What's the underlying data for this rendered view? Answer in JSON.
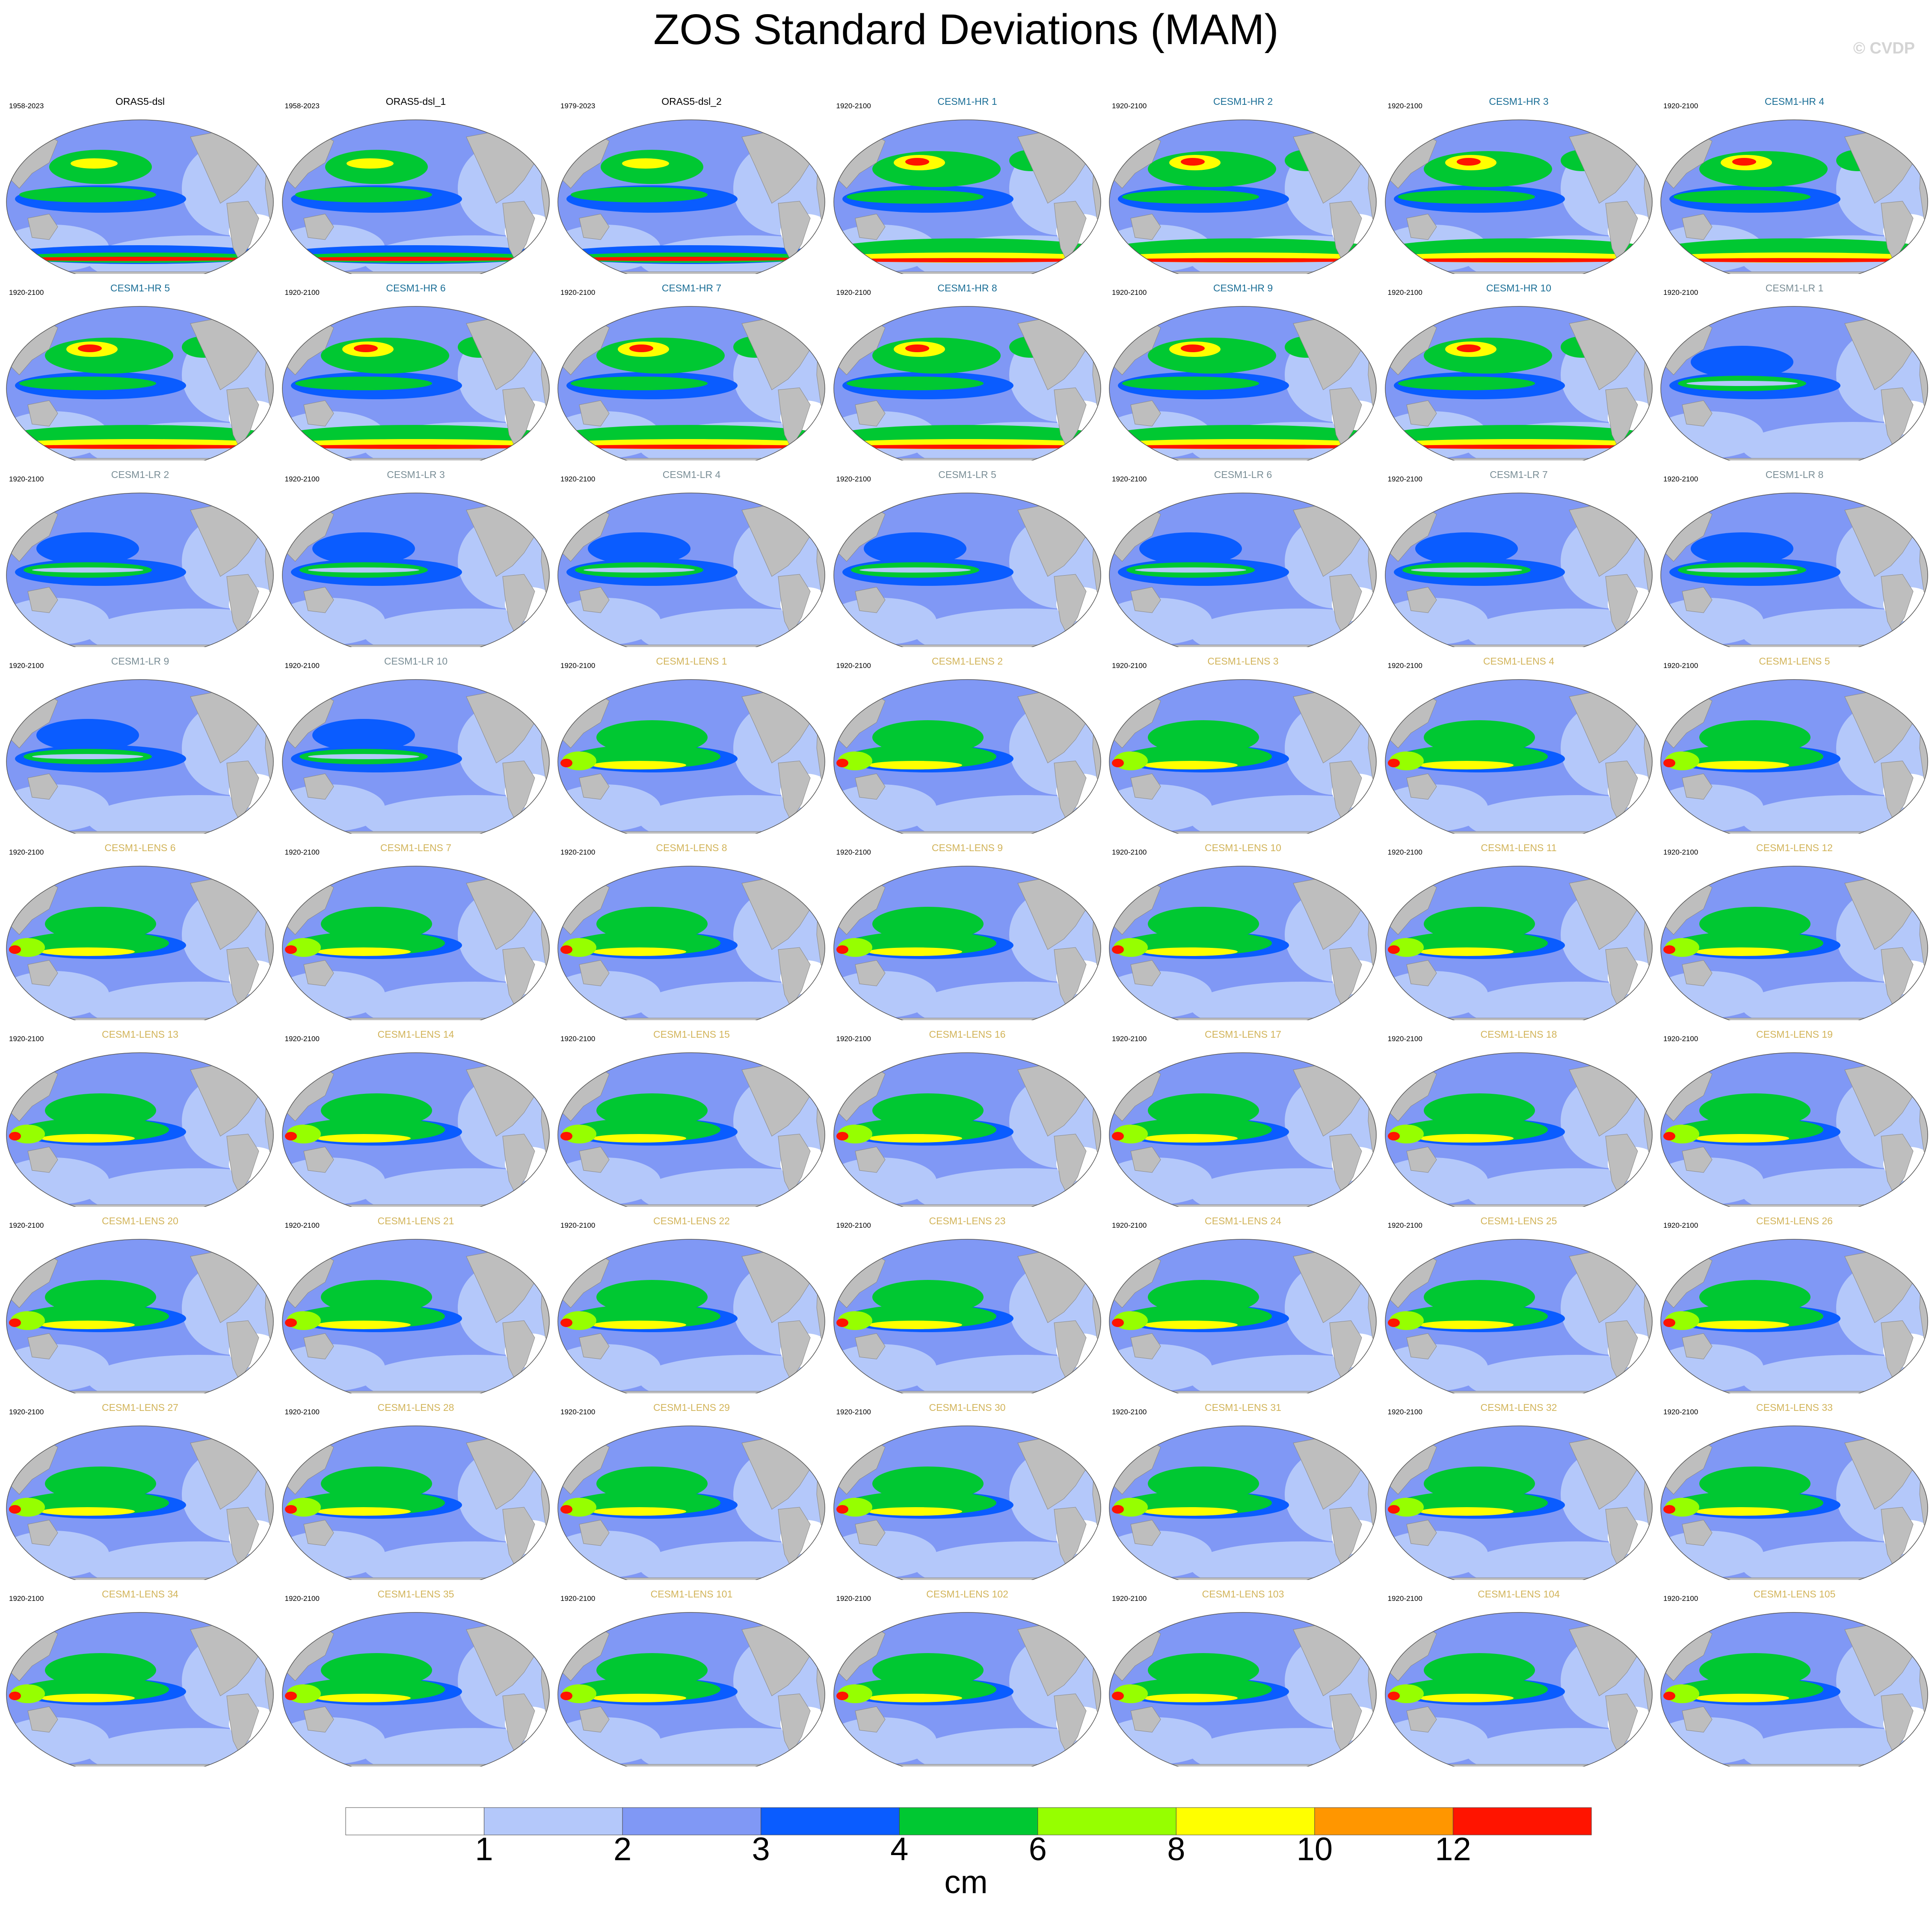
{
  "title": "ZOS Standard Deviations (MAM)",
  "watermark": "© CVDP",
  "colorbar": {
    "title": "cm",
    "labels": [
      "1",
      "2",
      "3",
      "4",
      "6",
      "8",
      "10",
      "12"
    ],
    "colors": [
      "#ffffff",
      "#b4c8fa",
      "#8098f5",
      "#0a5cff",
      "#00c832",
      "#96ff00",
      "#ffff00",
      "#ff9600",
      "#ff1400"
    ],
    "land_color": "#bebebe"
  },
  "panels": [
    {
      "name": "ORAS5-dsl",
      "period": "1958-2023",
      "color": "#000000"
    },
    {
      "name": "ORAS5-dsl_1",
      "period": "1958-2023",
      "color": "#000000"
    },
    {
      "name": "ORAS5-dsl_2",
      "period": "1979-2023",
      "color": "#000000"
    },
    {
      "name": "CESM1-HR 1",
      "period": "1920-2100",
      "color": "#1a6e96"
    },
    {
      "name": "CESM1-HR 2",
      "period": "1920-2100",
      "color": "#1a6e96"
    },
    {
      "name": "CESM1-HR 3",
      "period": "1920-2100",
      "color": "#1a6e96"
    },
    {
      "name": "CESM1-HR 4",
      "period": "1920-2100",
      "color": "#1a6e96"
    },
    {
      "name": "CESM1-HR 5",
      "period": "1920-2100",
      "color": "#1a6e96"
    },
    {
      "name": "CESM1-HR 6",
      "period": "1920-2100",
      "color": "#1a6e96"
    },
    {
      "name": "CESM1-HR 7",
      "period": "1920-2100",
      "color": "#1a6e96"
    },
    {
      "name": "CESM1-HR 8",
      "period": "1920-2100",
      "color": "#1a6e96"
    },
    {
      "name": "CESM1-HR 9",
      "period": "1920-2100",
      "color": "#1a6e96"
    },
    {
      "name": "CESM1-HR 10",
      "period": "1920-2100",
      "color": "#1a6e96"
    },
    {
      "name": "CESM1-LR 1",
      "period": "1920-2100",
      "color": "#7a8e96"
    },
    {
      "name": "CESM1-LR 2",
      "period": "1920-2100",
      "color": "#7a8e96"
    },
    {
      "name": "CESM1-LR 3",
      "period": "1920-2100",
      "color": "#7a8e96"
    },
    {
      "name": "CESM1-LR 4",
      "period": "1920-2100",
      "color": "#7a8e96"
    },
    {
      "name": "CESM1-LR 5",
      "period": "1920-2100",
      "color": "#7a8e96"
    },
    {
      "name": "CESM1-LR 6",
      "period": "1920-2100",
      "color": "#7a8e96"
    },
    {
      "name": "CESM1-LR 7",
      "period": "1920-2100",
      "color": "#7a8e96"
    },
    {
      "name": "CESM1-LR 8",
      "period": "1920-2100",
      "color": "#7a8e96"
    },
    {
      "name": "CESM1-LR 9",
      "period": "1920-2100",
      "color": "#7a8e96"
    },
    {
      "name": "CESM1-LR 10",
      "period": "1920-2100",
      "color": "#7a8e96"
    },
    {
      "name": "CESM1-LENS 1",
      "period": "1920-2100",
      "color": "#d2b45a"
    },
    {
      "name": "CESM1-LENS 2",
      "period": "1920-2100",
      "color": "#d2b45a"
    },
    {
      "name": "CESM1-LENS 3",
      "period": "1920-2100",
      "color": "#d2b45a"
    },
    {
      "name": "CESM1-LENS 4",
      "period": "1920-2100",
      "color": "#d2b45a"
    },
    {
      "name": "CESM1-LENS 5",
      "period": "1920-2100",
      "color": "#d2b45a"
    },
    {
      "name": "CESM1-LENS 6",
      "period": "1920-2100",
      "color": "#d2b45a"
    },
    {
      "name": "CESM1-LENS 7",
      "period": "1920-2100",
      "color": "#d2b45a"
    },
    {
      "name": "CESM1-LENS 8",
      "period": "1920-2100",
      "color": "#d2b45a"
    },
    {
      "name": "CESM1-LENS 9",
      "period": "1920-2100",
      "color": "#d2b45a"
    },
    {
      "name": "CESM1-LENS 10",
      "period": "1920-2100",
      "color": "#d2b45a"
    },
    {
      "name": "CESM1-LENS 11",
      "period": "1920-2100",
      "color": "#d2b45a"
    },
    {
      "name": "CESM1-LENS 12",
      "period": "1920-2100",
      "color": "#d2b45a"
    },
    {
      "name": "CESM1-LENS 13",
      "period": "1920-2100",
      "color": "#d2b45a"
    },
    {
      "name": "CESM1-LENS 14",
      "period": "1920-2100",
      "color": "#d2b45a"
    },
    {
      "name": "CESM1-LENS 15",
      "period": "1920-2100",
      "color": "#d2b45a"
    },
    {
      "name": "CESM1-LENS 16",
      "period": "1920-2100",
      "color": "#d2b45a"
    },
    {
      "name": "CESM1-LENS 17",
      "period": "1920-2100",
      "color": "#d2b45a"
    },
    {
      "name": "CESM1-LENS 18",
      "period": "1920-2100",
      "color": "#d2b45a"
    },
    {
      "name": "CESM1-LENS 19",
      "period": "1920-2100",
      "color": "#d2b45a"
    },
    {
      "name": "CESM1-LENS 20",
      "period": "1920-2100",
      "color": "#d2b45a"
    },
    {
      "name": "CESM1-LENS 21",
      "period": "1920-2100",
      "color": "#d2b45a"
    },
    {
      "name": "CESM1-LENS 22",
      "period": "1920-2100",
      "color": "#d2b45a"
    },
    {
      "name": "CESM1-LENS 23",
      "period": "1920-2100",
      "color": "#d2b45a"
    },
    {
      "name": "CESM1-LENS 24",
      "period": "1920-2100",
      "color": "#d2b45a"
    },
    {
      "name": "CESM1-LENS 25",
      "period": "1920-2100",
      "color": "#d2b45a"
    },
    {
      "name": "CESM1-LENS 26",
      "period": "1920-2100",
      "color": "#d2b45a"
    },
    {
      "name": "CESM1-LENS 27",
      "period": "1920-2100",
      "color": "#d2b45a"
    },
    {
      "name": "CESM1-LENS 28",
      "period": "1920-2100",
      "color": "#d2b45a"
    },
    {
      "name": "CESM1-LENS 29",
      "period": "1920-2100",
      "color": "#d2b45a"
    },
    {
      "name": "CESM1-LENS 30",
      "period": "1920-2100",
      "color": "#d2b45a"
    },
    {
      "name": "CESM1-LENS 31",
      "period": "1920-2100",
      "color": "#d2b45a"
    },
    {
      "name": "CESM1-LENS 32",
      "period": "1920-2100",
      "color": "#d2b45a"
    },
    {
      "name": "CESM1-LENS 33",
      "period": "1920-2100",
      "color": "#d2b45a"
    },
    {
      "name": "CESM1-LENS 34",
      "period": "1920-2100",
      "color": "#d2b45a"
    },
    {
      "name": "CESM1-LENS 35",
      "period": "1920-2100",
      "color": "#d2b45a"
    },
    {
      "name": "CESM1-LENS 101",
      "period": "1920-2100",
      "color": "#d2b45a"
    },
    {
      "name": "CESM1-LENS 102",
      "period": "1920-2100",
      "color": "#d2b45a"
    },
    {
      "name": "CESM1-LENS 103",
      "period": "1920-2100",
      "color": "#d2b45a"
    },
    {
      "name": "CESM1-LENS 104",
      "period": "1920-2100",
      "color": "#d2b45a"
    },
    {
      "name": "CESM1-LENS 105",
      "period": "1920-2100",
      "color": "#d2b45a"
    }
  ]
}
